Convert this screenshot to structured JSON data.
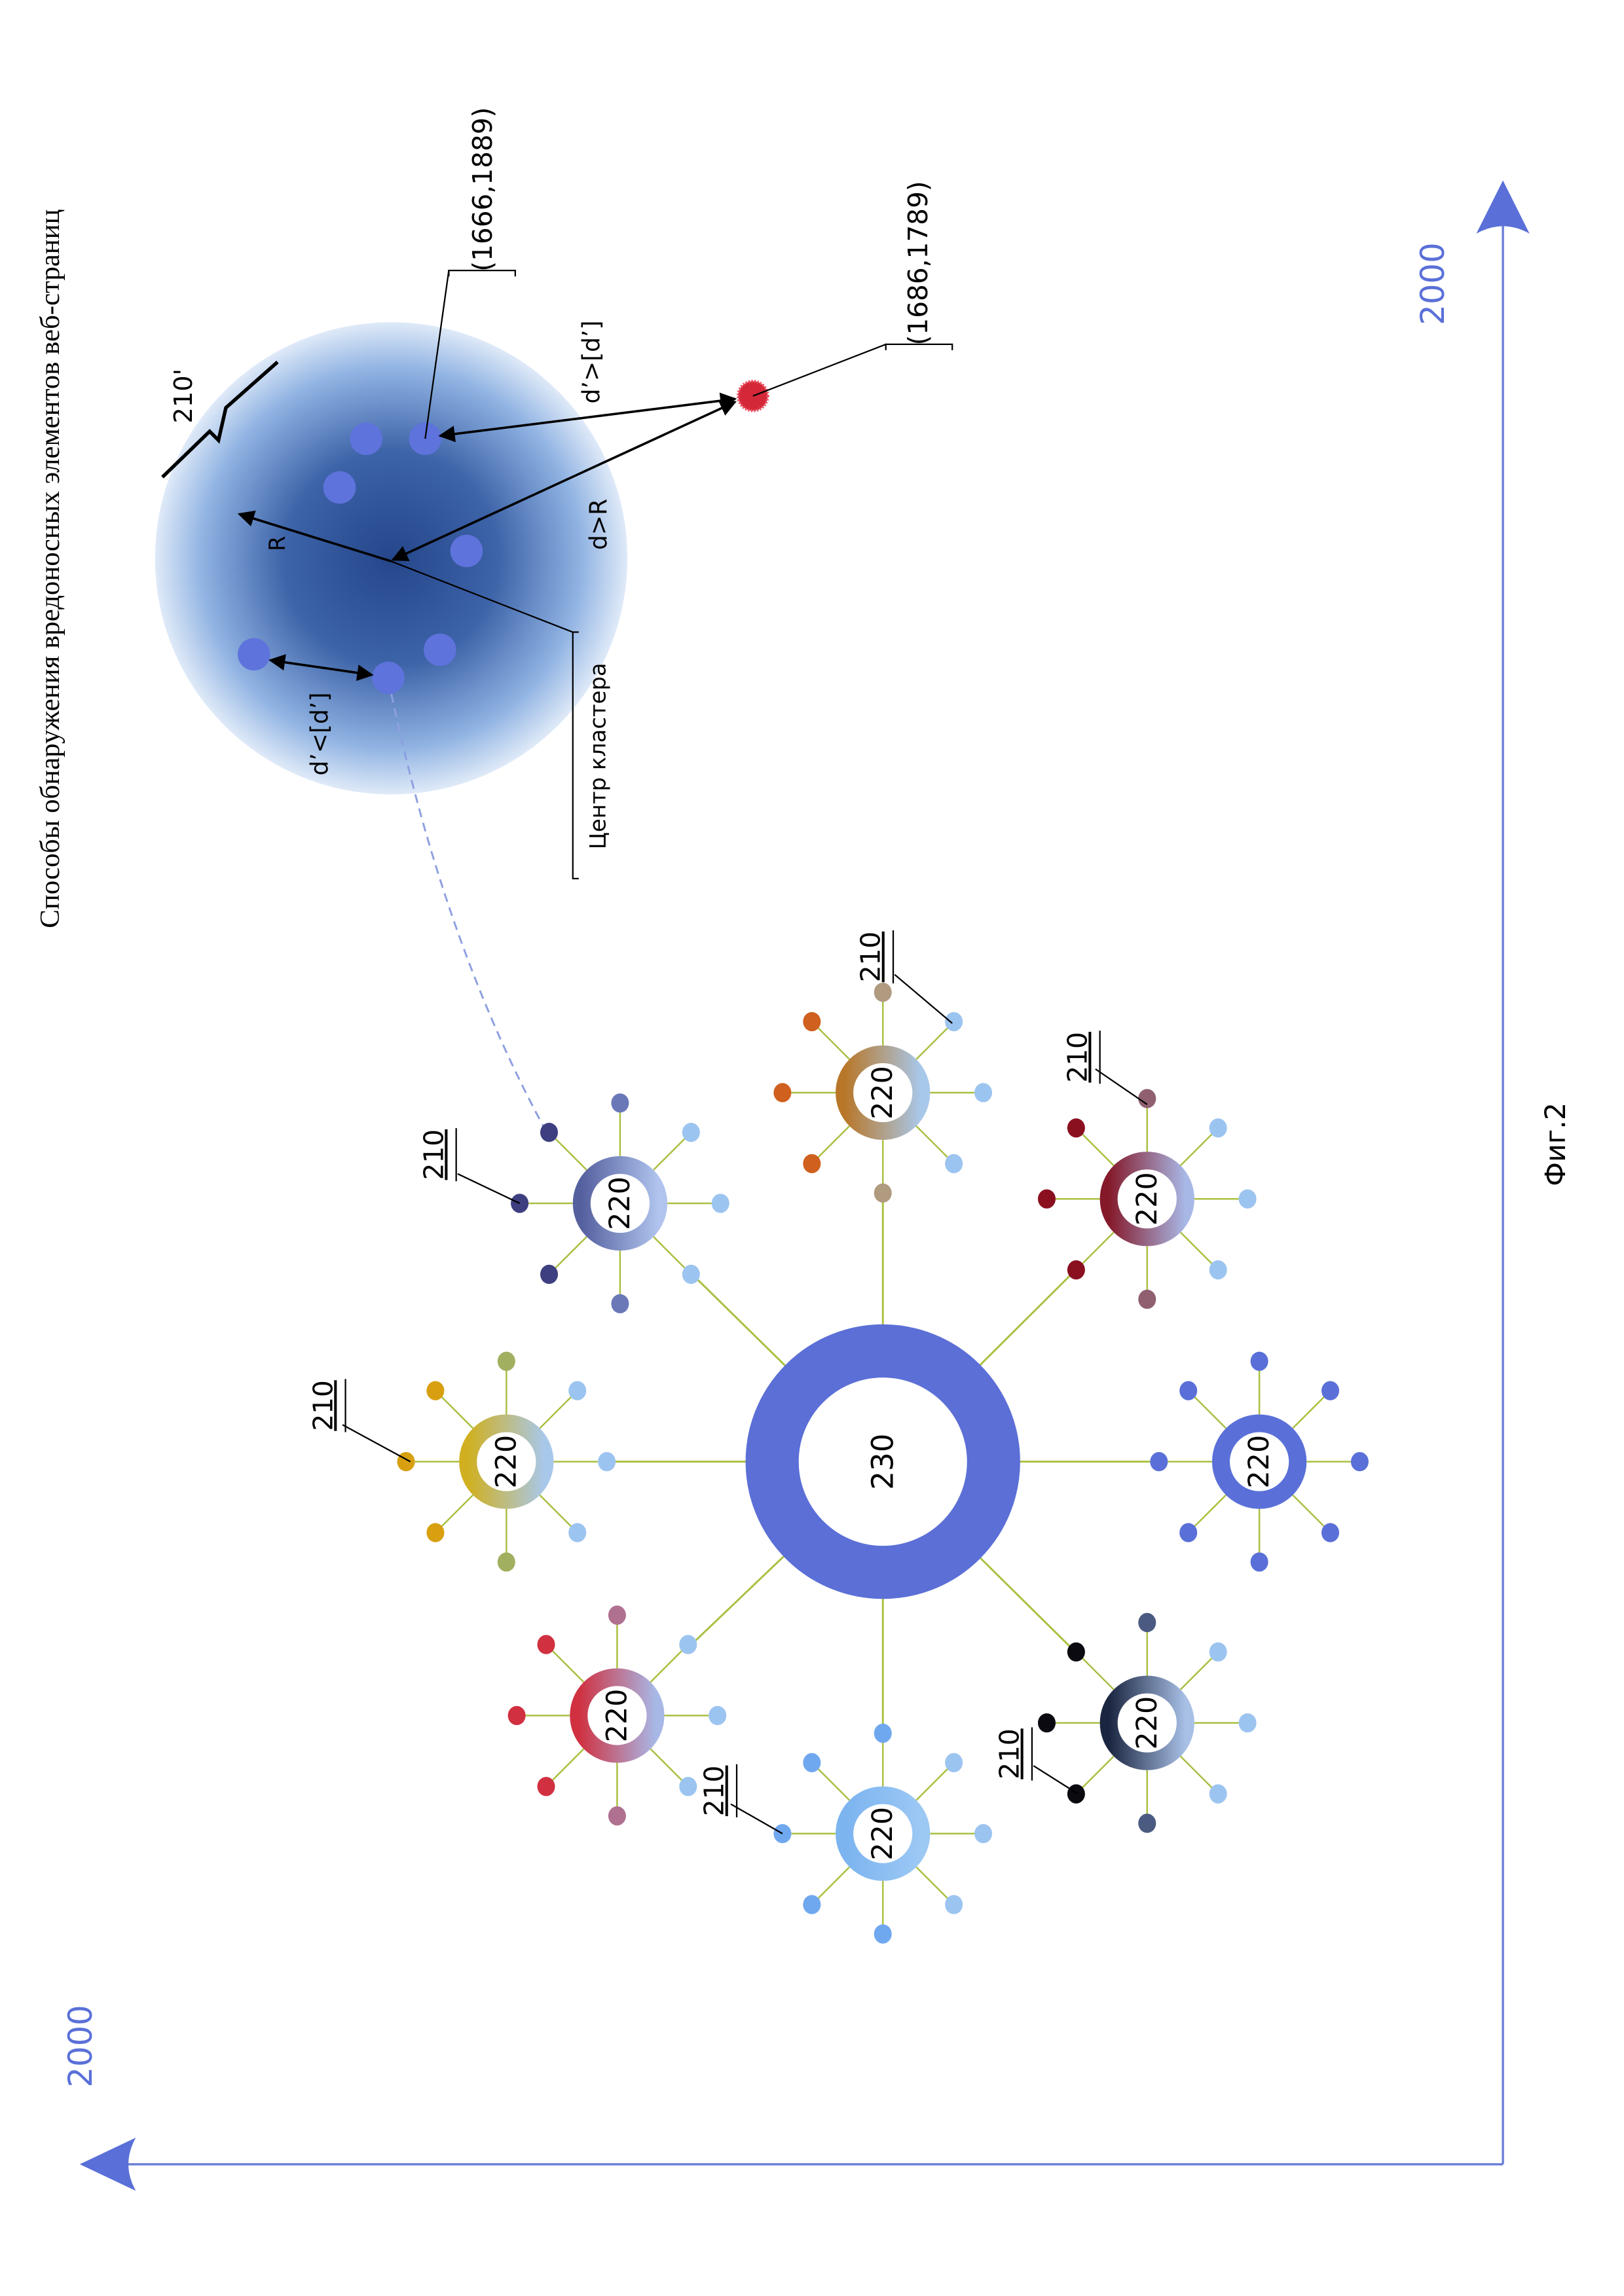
{
  "title": "Способы обнаружения вредоносных элементов веб-страниц",
  "figure_label": "Фиг.2",
  "axes": {
    "x_max_label": "2000",
    "y_max_label": "2000",
    "color": "#5a70d8"
  },
  "hub": {
    "label": "230",
    "color": "#5b6fd6"
  },
  "spoke_color": "#a8c040",
  "satellites": [
    {
      "label": "220",
      "ring": [
        "#55609f",
        "#b0c4ee"
      ],
      "outer": "#3d3f80",
      "mid": "#6a78b8",
      "inner": "#9cc4f0"
    },
    {
      "label": "220",
      "ring": [
        "#b87728",
        "#a8c8ea"
      ],
      "outer": "#d0601e",
      "mid": "#b09a80",
      "inner": "#9cc4f0"
    },
    {
      "label": "220",
      "ring": [
        "#85192a",
        "#a8b8e6"
      ],
      "outer": "#8a1020",
      "mid": "#906070",
      "inner": "#9cc4f0"
    },
    {
      "label": "220",
      "ring": [
        "#5a70d8",
        "#5a70d8"
      ],
      "outer": "#5a70d8",
      "mid": "#5a70d8",
      "inner": "#5a70d8"
    },
    {
      "label": "220",
      "ring": [
        "#1a2540",
        "#a8c0e6"
      ],
      "outer": "#0a0a10",
      "mid": "#4a5a80",
      "inner": "#9cc4f0"
    },
    {
      "label": "220",
      "ring": [
        "#7cb4f0",
        "#9cc8f4"
      ],
      "outer": "#70a8f0",
      "mid": "#70a8f0",
      "inner": "#9cc4f0"
    },
    {
      "label": "220",
      "ring": [
        "#d03040",
        "#a8b8e6"
      ],
      "outer": "#d03040",
      "mid": "#b07090",
      "inner": "#9cc4f0"
    },
    {
      "label": "220",
      "ring": [
        "#d0b020",
        "#a8c8ea"
      ],
      "outer": "#d8a010",
      "mid": "#a0b060",
      "inner": "#9cc4f0"
    }
  ],
  "element_labels": {
    "element": "210",
    "element_anomalous": "210'"
  },
  "cluster": {
    "center_label": "Центр кластера",
    "radius_label": "R",
    "distance_label": "d>R",
    "d_prime_greater": "d’>[d’]",
    "d_prime_less": "d’<[d’]",
    "point_in_cluster": "(1666,1889)",
    "point_outlier": "(1686,1789)",
    "outlier_color": "#d42838",
    "point_color": "#5f73dc"
  }
}
